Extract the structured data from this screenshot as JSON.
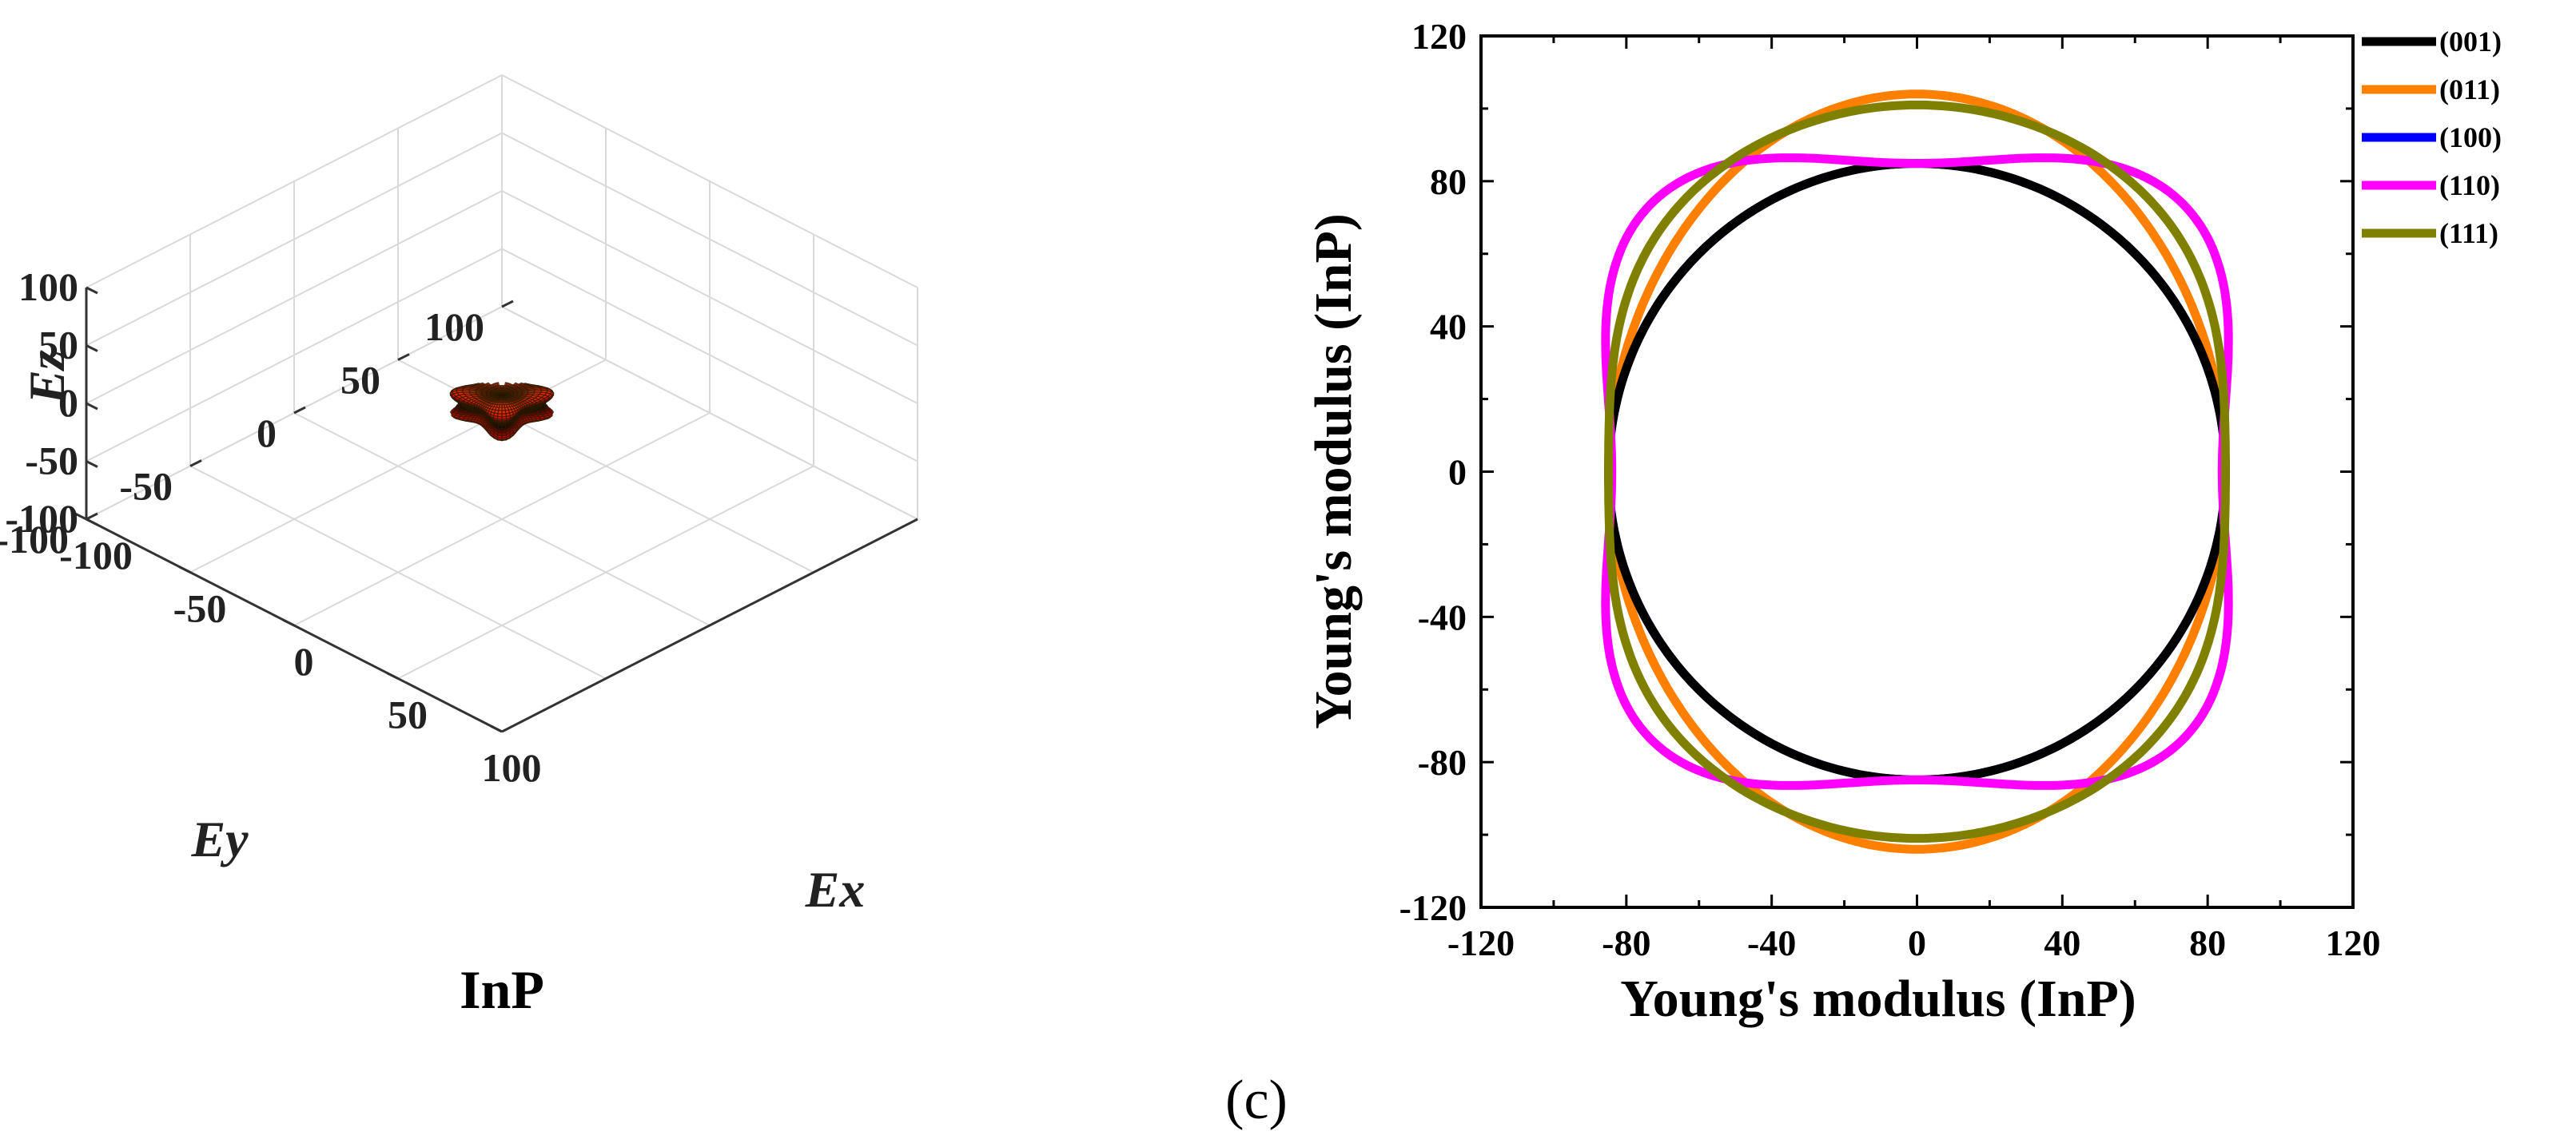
{
  "chart_data": [
    {
      "type": "surface3d",
      "title": "InP",
      "xlabel": "Ex",
      "ylabel": "Ey",
      "zlabel": "Ez",
      "x_ticks": [
        "-100",
        "-50",
        "0",
        "50",
        "100"
      ],
      "y_ticks": [
        "-100",
        "-50",
        "0",
        "50",
        "100"
      ],
      "z_ticks": [
        "-100",
        "-50",
        "0",
        "50",
        "100"
      ],
      "xlim": [
        -100,
        100
      ],
      "ylim": [
        -100,
        100
      ],
      "zlim": [
        -100,
        100
      ],
      "grid": true,
      "colormap": [
        "#000000",
        "#c80000",
        "#ff3c00",
        "#ff9600",
        "#ffff10"
      ]
    },
    {
      "type": "line",
      "plot": "polar-closed-curves",
      "xlabel": "Young's modulus (InP)",
      "ylabel": "Young's modulus (InP)",
      "x_ticks": [
        "-120",
        "-80",
        "-40",
        "0",
        "40",
        "80",
        "120"
      ],
      "y_ticks": [
        "-120",
        "-80",
        "-40",
        "0",
        "40",
        "80",
        "120"
      ],
      "xlim": [
        -120,
        120
      ],
      "ylim": [
        -120,
        120
      ],
      "legend_position": "outside-right-top",
      "series": [
        {
          "name": "(001)",
          "color": "#000000",
          "r_min": 84.9,
          "r_max": 84.9,
          "r_min_dir": 0,
          "r_max_dir": 45
        },
        {
          "name": "(011)",
          "color": "#ff8000",
          "r_min": 84.9,
          "r_max": 104.0,
          "r_min_dir": 0,
          "r_max_dir": 90
        },
        {
          "name": "(100)",
          "color": "#0000ff",
          "r_min": 84.9,
          "r_max": 84.9,
          "r_min_dir": 0,
          "r_max_dir": 45
        },
        {
          "name": "(110)",
          "color": "#ff00ff",
          "r_min": 84.9,
          "r_max": 104.0,
          "r_min_dir": 90,
          "r_max_dir": 0
        },
        {
          "name": "(111)",
          "color": "#808000",
          "r_min": 84.9,
          "r_max": 101.0,
          "r_min_dir": 0,
          "r_max_dir": 90
        }
      ]
    }
  ],
  "panel_label": "(c)"
}
